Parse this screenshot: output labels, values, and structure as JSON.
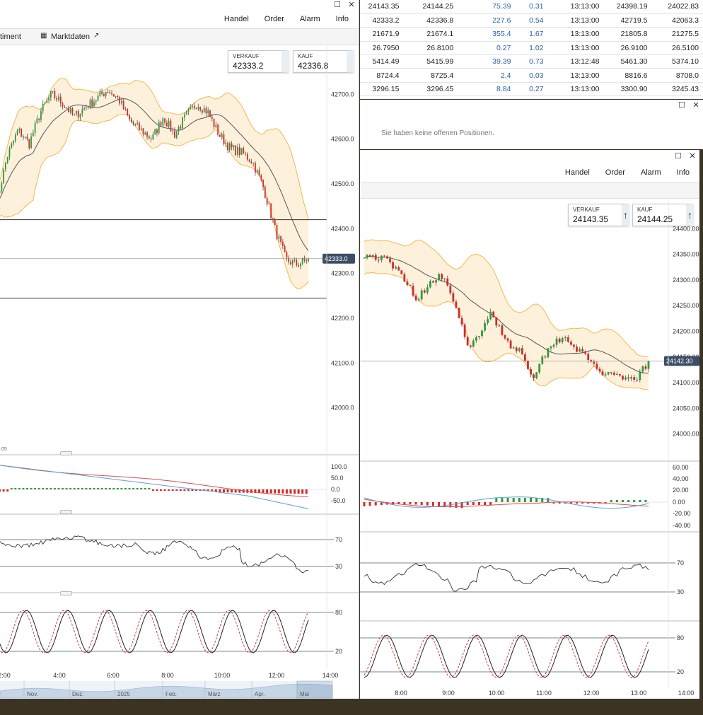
{
  "left_window": {
    "menu": [
      "Handel",
      "Order",
      "Alarm",
      "Info"
    ],
    "tabs": {
      "sentiment": "timent",
      "marktdaten": "Marktdaten"
    },
    "sell": {
      "label": "VERKAUF",
      "value": "42333.2"
    },
    "buy": {
      "label": "KAUF",
      "value": "42336.8"
    },
    "price_axis": [
      "42700.0",
      "42600.0",
      "42500.0",
      "42400.0",
      "42300.0",
      "42200.0",
      "42100.0",
      "42000.0"
    ],
    "current_price": "42333.0",
    "time_fragment": ":05",
    "macd_axis": [
      "100.0",
      "50.0",
      "0.0",
      "-50.0"
    ],
    "rsi_axis": [
      "70",
      "30"
    ],
    "stoch_axis": [
      "80",
      "20"
    ],
    "time_axis": [
      "2:00",
      "4:00",
      "6:00",
      "8:00",
      "10:00",
      "12:00",
      "14:00"
    ],
    "navigator_labels": [
      "Nov.",
      "Dez.",
      "2025",
      "Feb.",
      "März",
      "Apr.",
      "Mai"
    ]
  },
  "quotes": {
    "rows": [
      [
        "24143.35",
        "24144.25",
        "75.39",
        "0.31",
        "13:13:00",
        "24398.19",
        "24022.83"
      ],
      [
        "42333.2",
        "42336.8",
        "227.6",
        "0.54",
        "13:13:00",
        "42719.5",
        "42063.3"
      ],
      [
        "21671.9",
        "21674.1",
        "355.4",
        "1.67",
        "13:13:00",
        "21805.8",
        "21275.5"
      ],
      [
        "26.7950",
        "26.8100",
        "0.27",
        "1.02",
        "13:13:00",
        "26.9100",
        "26.5100"
      ],
      [
        "5414.49",
        "5415.99",
        "39.39",
        "0.73",
        "13:12:48",
        "5461.30",
        "5374.10"
      ],
      [
        "8724.4",
        "8725.4",
        "2.4",
        "0.03",
        "13:13:00",
        "8816.6",
        "8708.0"
      ],
      [
        "3296.15",
        "3296.45",
        "8.84",
        "0.27",
        "13:13:00",
        "3300.90",
        "3245.43"
      ]
    ]
  },
  "positions": {
    "message": "Sie haben keine offenen Positionen."
  },
  "right_window": {
    "menu": [
      "Handel",
      "Order",
      "Alarm",
      "Info"
    ],
    "sell": {
      "label": "VERKAUF",
      "value": "24143.35"
    },
    "buy": {
      "label": "KAUF",
      "value": "24144.25"
    },
    "price_axis": [
      "24400.00",
      "24350.00",
      "24300.00",
      "24250.00",
      "24200.00",
      "24150.00",
      "24100.00",
      "24050.00",
      "24000.00"
    ],
    "current_price": "24142.30",
    "macd_axis": [
      "60.00",
      "40.00",
      "20.00",
      "0.00",
      "-20.00",
      "-40.00"
    ],
    "rsi_axis": [
      "70",
      "30"
    ],
    "stoch_axis": [
      "80",
      "20"
    ],
    "time_axis": [
      "8:00",
      "9:00",
      "10:00",
      "11:00",
      "12:00",
      "13:00",
      "14:00"
    ]
  },
  "colors": {
    "up": "#2e9b3a",
    "down": "#d42a2a",
    "band": "#f2b84b",
    "band_fill": "#fdf1dc",
    "ma": "#555555",
    "price_tag": "#3d4e66"
  },
  "chart_data": [
    {
      "type": "candlestick",
      "series": [
        {
          "name": "Candles"
        },
        {
          "name": "Bollinger Bands"
        },
        {
          "name": "MACD"
        },
        {
          "name": "RSI"
        },
        {
          "name": "Stochastic"
        }
      ],
      "ylim": [
        41900,
        42800
      ],
      "last": 42333.0,
      "ticks": [
        42700,
        42600,
        42500,
        42400,
        42300,
        42200,
        42100,
        42000
      ]
    },
    {
      "type": "candlestick",
      "series": [
        {
          "name": "Candles"
        },
        {
          "name": "Bollinger Bands"
        },
        {
          "name": "MACD"
        },
        {
          "name": "RSI"
        },
        {
          "name": "Stochastic"
        }
      ],
      "ylim": [
        23950,
        24450
      ],
      "last": 24142.3,
      "ticks": [
        24400,
        24350,
        24300,
        24250,
        24200,
        24150,
        24100,
        24050,
        24000
      ]
    }
  ]
}
